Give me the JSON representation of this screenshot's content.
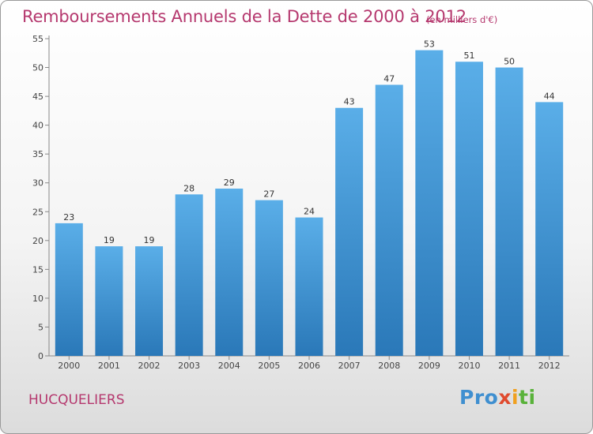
{
  "header": {
    "title": "Remboursements Annuels de la Dette de 2000 à 2012",
    "unit": "(en milliers d'€)"
  },
  "footer": {
    "commune": "HUCQUELIERS",
    "logo_parts": [
      "Pro",
      "x",
      "i",
      "ti"
    ]
  },
  "colors": {
    "bar_top": "#5aaee8",
    "bar_bottom": "#2a78b8",
    "title": "#b5386e"
  },
  "chart_data": {
    "type": "bar",
    "title": "Remboursements Annuels de la Dette de 2000 à 2012",
    "subtitle": "(en milliers d'€)",
    "categories": [
      "2000",
      "2001",
      "2002",
      "2003",
      "2004",
      "2005",
      "2006",
      "2007",
      "2008",
      "2009",
      "2010",
      "2011",
      "2012"
    ],
    "values": [
      23,
      19,
      19,
      28,
      29,
      27,
      24,
      43,
      47,
      53,
      51,
      50,
      44
    ],
    "ylim": [
      0,
      55
    ],
    "yticks": [
      0,
      5,
      10,
      15,
      20,
      25,
      30,
      35,
      40,
      45,
      50,
      55
    ],
    "grid": false,
    "legend": "none"
  }
}
